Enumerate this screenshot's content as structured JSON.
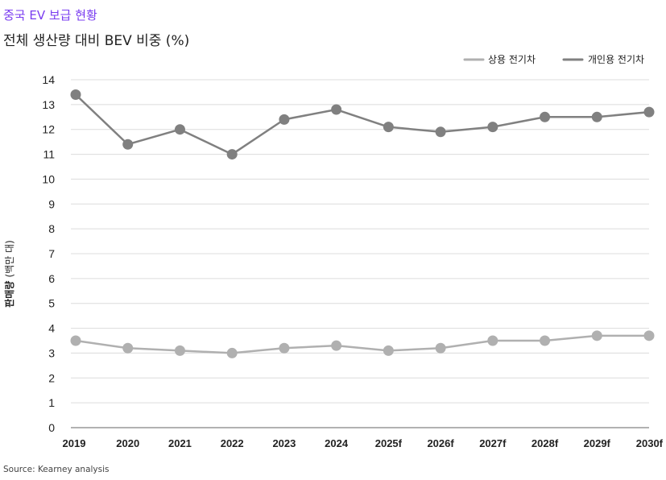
{
  "header": {
    "kicker": "중국 EV 보급 현황",
    "title": "전체 생산량 대비 BEV 비중 (%)"
  },
  "footer": {
    "source": "Source: Kearney analysis"
  },
  "colors": {
    "kicker": "#7a3df0",
    "commercial": "#b0b0b0",
    "personal": "#808080",
    "grid": "#dcdcdc",
    "axis": "#999999"
  },
  "chart_data": {
    "type": "line",
    "categories": [
      "2019",
      "2020",
      "2021",
      "2022",
      "2023",
      "2024",
      "2025f",
      "2026f",
      "2027f",
      "2028f",
      "2029f",
      "2030f"
    ],
    "series": [
      {
        "name": "상용 전기차",
        "values": [
          3.5,
          3.2,
          3.1,
          3.0,
          3.2,
          3.3,
          3.1,
          3.2,
          3.5,
          3.5,
          3.7,
          3.7
        ]
      },
      {
        "name": "개인용 전기차",
        "values": [
          13.4,
          11.4,
          12.0,
          11.0,
          12.4,
          12.8,
          12.1,
          11.9,
          12.1,
          12.5,
          12.5,
          12.7
        ]
      }
    ],
    "y_ticks": [
      "0",
      "1",
      "2",
      "3",
      "4",
      "5",
      "6",
      "7",
      "8",
      "9",
      "10",
      "11",
      "12",
      "13",
      "14"
    ],
    "ylim": [
      0,
      14
    ],
    "ylabel_bold": "판매량",
    "ylabel_unit": "(백만 대)",
    "xlabel": "",
    "grid": true,
    "legend_position": "top-right"
  }
}
